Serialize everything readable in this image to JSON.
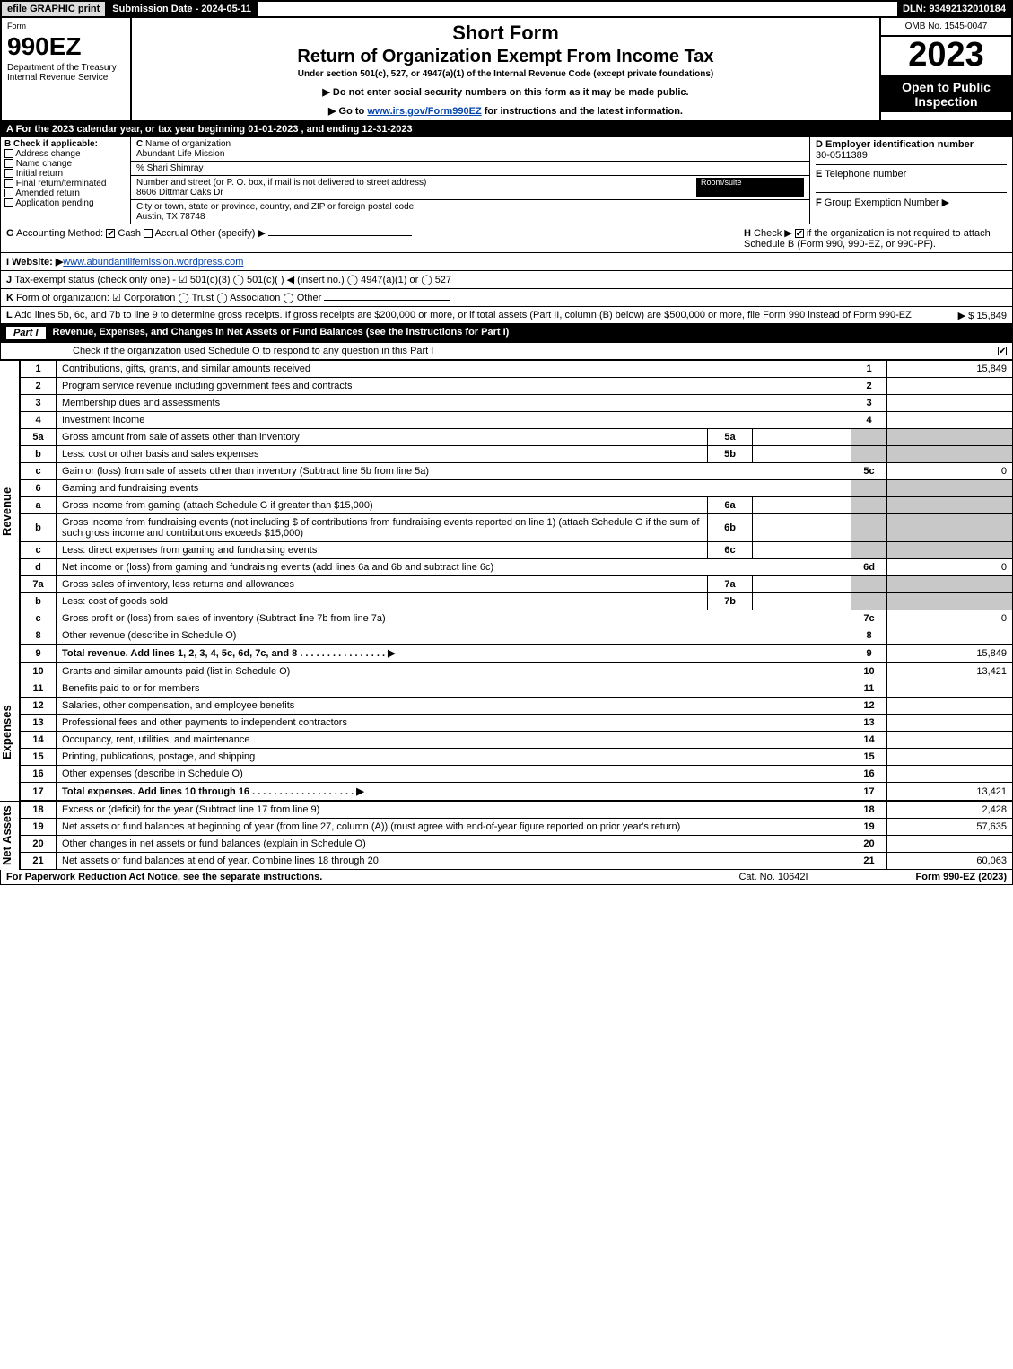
{
  "topbar": {
    "efile": "efile GRAPHIC print",
    "submission": "Submission Date - 2024-05-11",
    "dln": "DLN: 93492132010184"
  },
  "header": {
    "form_label": "Form",
    "form_number": "990EZ",
    "dept": "Department of the Treasury\nInternal Revenue Service",
    "title1": "Short Form",
    "title2": "Return of Organization Exempt From Income Tax",
    "subtitle": "Under section 501(c), 527, or 4947(a)(1) of the Internal Revenue Code (except private foundations)",
    "note1": "▶ Do not enter social security numbers on this form as it may be made public.",
    "note2_pre": "▶ Go to ",
    "note2_link": "www.irs.gov/Form990EZ",
    "note2_post": " for instructions and the latest information.",
    "omb": "OMB No. 1545-0047",
    "year": "2023",
    "inspection": "Open to Public Inspection"
  },
  "lineA": "For the 2023 calendar year, or tax year beginning 01-01-2023 , and ending 12-31-2023",
  "sectionB": {
    "heading": "Check if applicable:",
    "items": [
      "Address change",
      "Name change",
      "Initial return",
      "Final return/terminated",
      "Amended return",
      "Application pending"
    ]
  },
  "sectionC": {
    "name_label": "Name of organization",
    "org_name": "Abundant Life Mission",
    "care_of": "% Shari Shimray",
    "street_label": "Number and street (or P. O. box, if mail is not delivered to street address)",
    "room_label": "Room/suite",
    "street": "8606 Dittmar Oaks Dr",
    "city_label": "City or town, state or province, country, and ZIP or foreign postal code",
    "city": "Austin, TX  78748"
  },
  "sectionD": {
    "label": "Employer identification number",
    "value": "30-0511389"
  },
  "sectionE": {
    "label": "Telephone number",
    "value": ""
  },
  "sectionF": {
    "label": "Group Exemption Number   ▶",
    "value": ""
  },
  "lineG_label": "Accounting Method:",
  "lineG_cash": "Cash",
  "lineG_accrual": "Accrual",
  "lineG_other": "Other (specify) ▶",
  "lineH": {
    "prefix": "Check ▶",
    "text": "if the organization is not required to attach Schedule B (Form 990, 990-EZ, or 990-PF)."
  },
  "lineI_label": "Website: ▶",
  "lineI_value": "www.abundantlifemission.wordpress.com",
  "lineJ": "Tax-exempt status (check only one) - ☑ 501(c)(3)  ◯ 501(c)(  ) ◀ (insert no.)  ◯ 4947(a)(1) or  ◯ 527",
  "lineK": "Form of organization:  ☑ Corporation  ◯ Trust  ◯ Association  ◯ Other",
  "lineL": {
    "text": "Add lines 5b, 6c, and 7b to line 9 to determine gross receipts. If gross receipts are $200,000 or more, or if total assets (Part II, column (B) below) are $500,000 or more, file Form 990 instead of Form 990-EZ",
    "amount": "▶ $ 15,849"
  },
  "partI": {
    "label": "Part I",
    "title": "Revenue, Expenses, and Changes in Net Assets or Fund Balances (see the instructions for Part I)",
    "checknote": "Check if the organization used Schedule O to respond to any question in this Part I"
  },
  "sidebars": {
    "revenue": "Revenue",
    "expenses": "Expenses",
    "netassets": "Net Assets"
  },
  "revenue_lines": [
    {
      "n": "1",
      "desc": "Contributions, gifts, grants, and similar amounts received",
      "rn": "1",
      "amt": "15,849"
    },
    {
      "n": "2",
      "desc": "Program service revenue including government fees and contracts",
      "rn": "2",
      "amt": ""
    },
    {
      "n": "3",
      "desc": "Membership dues and assessments",
      "rn": "3",
      "amt": ""
    },
    {
      "n": "4",
      "desc": "Investment income",
      "rn": "4",
      "amt": ""
    },
    {
      "n": "5a",
      "desc": "Gross amount from sale of assets other than inventory",
      "sub": "5a",
      "subval": "",
      "shade": true
    },
    {
      "n": "b",
      "desc": "Less: cost or other basis and sales expenses",
      "sub": "5b",
      "subval": "",
      "shade": true
    },
    {
      "n": "c",
      "desc": "Gain or (loss) from sale of assets other than inventory (Subtract line 5b from line 5a)",
      "rn": "5c",
      "amt": "0"
    },
    {
      "n": "6",
      "desc": "Gaming and fundraising events",
      "shade_only": true
    },
    {
      "n": "a",
      "desc": "Gross income from gaming (attach Schedule G if greater than $15,000)",
      "sub": "6a",
      "subval": "",
      "shade": true
    },
    {
      "n": "b",
      "desc": "Gross income from fundraising events (not including $                      of contributions from fundraising events reported on line 1) (attach Schedule G if the sum of such gross income and contributions exceeds $15,000)",
      "sub": "6b",
      "subval": "",
      "shade": true
    },
    {
      "n": "c",
      "desc": "Less: direct expenses from gaming and fundraising events",
      "sub": "6c",
      "subval": "",
      "shade": true
    },
    {
      "n": "d",
      "desc": "Net income or (loss) from gaming and fundraising events (add lines 6a and 6b and subtract line 6c)",
      "rn": "6d",
      "amt": "0"
    },
    {
      "n": "7a",
      "desc": "Gross sales of inventory, less returns and allowances",
      "sub": "7a",
      "subval": "",
      "shade": true
    },
    {
      "n": "b",
      "desc": "Less: cost of goods sold",
      "sub": "7b",
      "subval": "",
      "shade": true
    },
    {
      "n": "c",
      "desc": "Gross profit or (loss) from sales of inventory (Subtract line 7b from line 7a)",
      "rn": "7c",
      "amt": "0"
    },
    {
      "n": "8",
      "desc": "Other revenue (describe in Schedule O)",
      "rn": "8",
      "amt": ""
    },
    {
      "n": "9",
      "desc": "Total revenue. Add lines 1, 2, 3, 4, 5c, 6d, 7c, and 8  .  .  .  .  .  .  .  .  .  .  .  .  .  .  .  .  ▶",
      "rn": "9",
      "amt": "15,849",
      "bold": true
    }
  ],
  "expense_lines": [
    {
      "n": "10",
      "desc": "Grants and similar amounts paid (list in Schedule O)",
      "rn": "10",
      "amt": "13,421"
    },
    {
      "n": "11",
      "desc": "Benefits paid to or for members",
      "rn": "11",
      "amt": ""
    },
    {
      "n": "12",
      "desc": "Salaries, other compensation, and employee benefits",
      "rn": "12",
      "amt": ""
    },
    {
      "n": "13",
      "desc": "Professional fees and other payments to independent contractors",
      "rn": "13",
      "amt": ""
    },
    {
      "n": "14",
      "desc": "Occupancy, rent, utilities, and maintenance",
      "rn": "14",
      "amt": ""
    },
    {
      "n": "15",
      "desc": "Printing, publications, postage, and shipping",
      "rn": "15",
      "amt": ""
    },
    {
      "n": "16",
      "desc": "Other expenses (describe in Schedule O)",
      "rn": "16",
      "amt": ""
    },
    {
      "n": "17",
      "desc": "Total expenses. Add lines 10 through 16  .  .  .  .  .  .  .  .  .  .  .  .  .  .  .  .  .  .  .  ▶",
      "rn": "17",
      "amt": "13,421",
      "bold": true
    }
  ],
  "netasset_lines": [
    {
      "n": "18",
      "desc": "Excess or (deficit) for the year (Subtract line 17 from line 9)",
      "rn": "18",
      "amt": "2,428"
    },
    {
      "n": "19",
      "desc": "Net assets or fund balances at beginning of year (from line 27, column (A)) (must agree with end-of-year figure reported on prior year's return)",
      "rn": "19",
      "amt": "57,635"
    },
    {
      "n": "20",
      "desc": "Other changes in net assets or fund balances (explain in Schedule O)",
      "rn": "20",
      "amt": ""
    },
    {
      "n": "21",
      "desc": "Net assets or fund balances at end of year. Combine lines 18 through 20",
      "rn": "21",
      "amt": "60,063"
    }
  ],
  "footer": {
    "notice": "For Paperwork Reduction Act Notice, see the separate instructions.",
    "cat": "Cat. No. 10642I",
    "form_ref": "Form 990-EZ (2023)"
  }
}
